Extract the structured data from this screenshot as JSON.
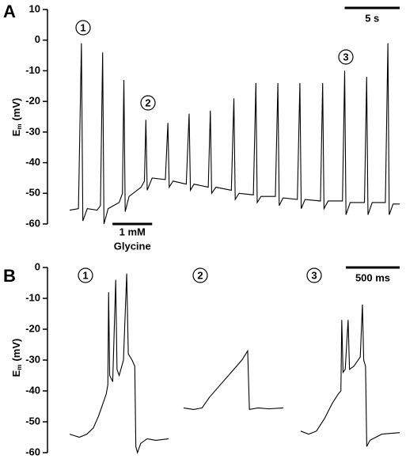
{
  "chart_data": [
    {
      "type": "line",
      "panel_label": "A",
      "ylabel": "E",
      "ylabel_subscript": "m",
      "ylabel_unit": "(mV)",
      "xlim": [
        0,
        30
      ],
      "ylim": [
        -60,
        10
      ],
      "yticks": [
        -60,
        -50,
        -40,
        -30,
        -20,
        -10,
        0,
        10
      ],
      "trace_labels": [
        "1",
        "2",
        "3"
      ],
      "scale_bar": {
        "value": 5,
        "label": "5 s"
      },
      "glycine_bar": {
        "xlim": [
          3.9,
          7.5
        ],
        "label_lines": [
          "1 mM",
          "Glycine"
        ]
      },
      "series": [
        {
          "color": "#000000",
          "x": [
            0,
            0.8,
            1.07,
            1.2,
            1.6,
            2.5,
            2.8,
            3.0,
            3.12,
            3.5,
            4.5,
            4.8,
            4.93,
            5.05,
            5.4,
            6.5,
            6.8,
            6.93,
            7.05,
            7.5,
            8.7,
            8.93,
            9.05,
            9.4,
            10.6,
            10.86,
            10.98,
            11.3,
            12.6,
            12.79,
            12.91,
            13.3,
            14.7,
            14.93,
            15.05,
            15.4,
            16.7,
            16.93,
            17.05,
            17.4,
            18.7,
            18.93,
            19.05,
            19.4,
            20.7,
            20.93,
            21.05,
            21.4,
            22.8,
            23.0,
            23.12,
            23.5,
            24.8,
            25.0,
            25.12,
            25.5,
            26.8,
            27.0,
            27.12,
            27.5,
            28.7,
            28.93,
            29.05,
            29.4,
            30
          ],
          "values": [
            -55.5,
            -55,
            -1,
            -59,
            -55,
            -55.5,
            -54,
            -4,
            -60,
            -55,
            -53,
            -50,
            -13,
            -56,
            -51,
            -48,
            -46,
            -26,
            -49,
            -45,
            -45.5,
            -27,
            -48,
            -46,
            -47,
            -24,
            -49,
            -47,
            -48,
            -23,
            -50,
            -48,
            -49,
            -19,
            -52,
            -50,
            -50.5,
            -14,
            -53,
            -51,
            -51,
            -14,
            -54,
            -51.5,
            -52,
            -14,
            -55,
            -52,
            -52.5,
            -14,
            -55,
            -52.5,
            -52.5,
            -10,
            -57,
            -53,
            -53,
            -12,
            -57,
            -53,
            -53,
            -1,
            -57,
            -53.5,
            -53.5
          ]
        }
      ]
    },
    {
      "type": "line",
      "panel_label": "B",
      "ylabel": "E",
      "ylabel_subscript": "m",
      "ylabel_unit": "(mV)",
      "xlim": [
        0,
        3066
      ],
      "ylim": [
        -60,
        0
      ],
      "yticks": [
        -60,
        -50,
        -40,
        -30,
        -20,
        -10,
        0
      ],
      "scale_bar": {
        "value": 500,
        "label": "500 ms"
      },
      "series": [
        {
          "name": "1",
          "color": "#000000",
          "x": [
            0,
            90,
            160,
            220,
            270,
            310,
            340,
            355,
            362,
            372,
            400,
            428,
            440,
            460,
            500,
            530,
            545,
            580,
            605,
            615,
            630,
            660,
            720,
            800,
            920
          ],
          "values": [
            -54,
            -55,
            -54,
            -52,
            -48,
            -44,
            -41,
            -38,
            -8,
            -35,
            -37,
            -4,
            -33,
            -35,
            -30,
            -2,
            -28,
            -30,
            -32,
            -58,
            -60,
            -57,
            -55.5,
            -56,
            -55.5
          ]
        },
        {
          "name": "2",
          "color": "#000000",
          "x": [
            1058,
            1150,
            1230,
            1300,
            1400,
            1500,
            1600,
            1654,
            1670,
            1750,
            1850,
            1985
          ],
          "values": [
            -45.5,
            -46,
            -45.5,
            -42,
            -38,
            -34,
            -30,
            -27,
            -46,
            -45.5,
            -45.8,
            -45.5
          ]
        },
        {
          "name": "3",
          "color": "#000000",
          "x": [
            2146,
            2220,
            2293,
            2367,
            2440,
            2495,
            2520,
            2528,
            2540,
            2560,
            2587,
            2600,
            2640,
            2700,
            2720,
            2732,
            2749,
            2760,
            2790,
            2900,
            3066
          ],
          "values": [
            -53,
            -54,
            -53,
            -49,
            -44,
            -41,
            -40,
            -17,
            -34,
            -33,
            -17,
            -33,
            -32,
            -29,
            -12,
            -30,
            -32,
            -58,
            -56,
            -54,
            -53.5
          ]
        }
      ]
    }
  ]
}
